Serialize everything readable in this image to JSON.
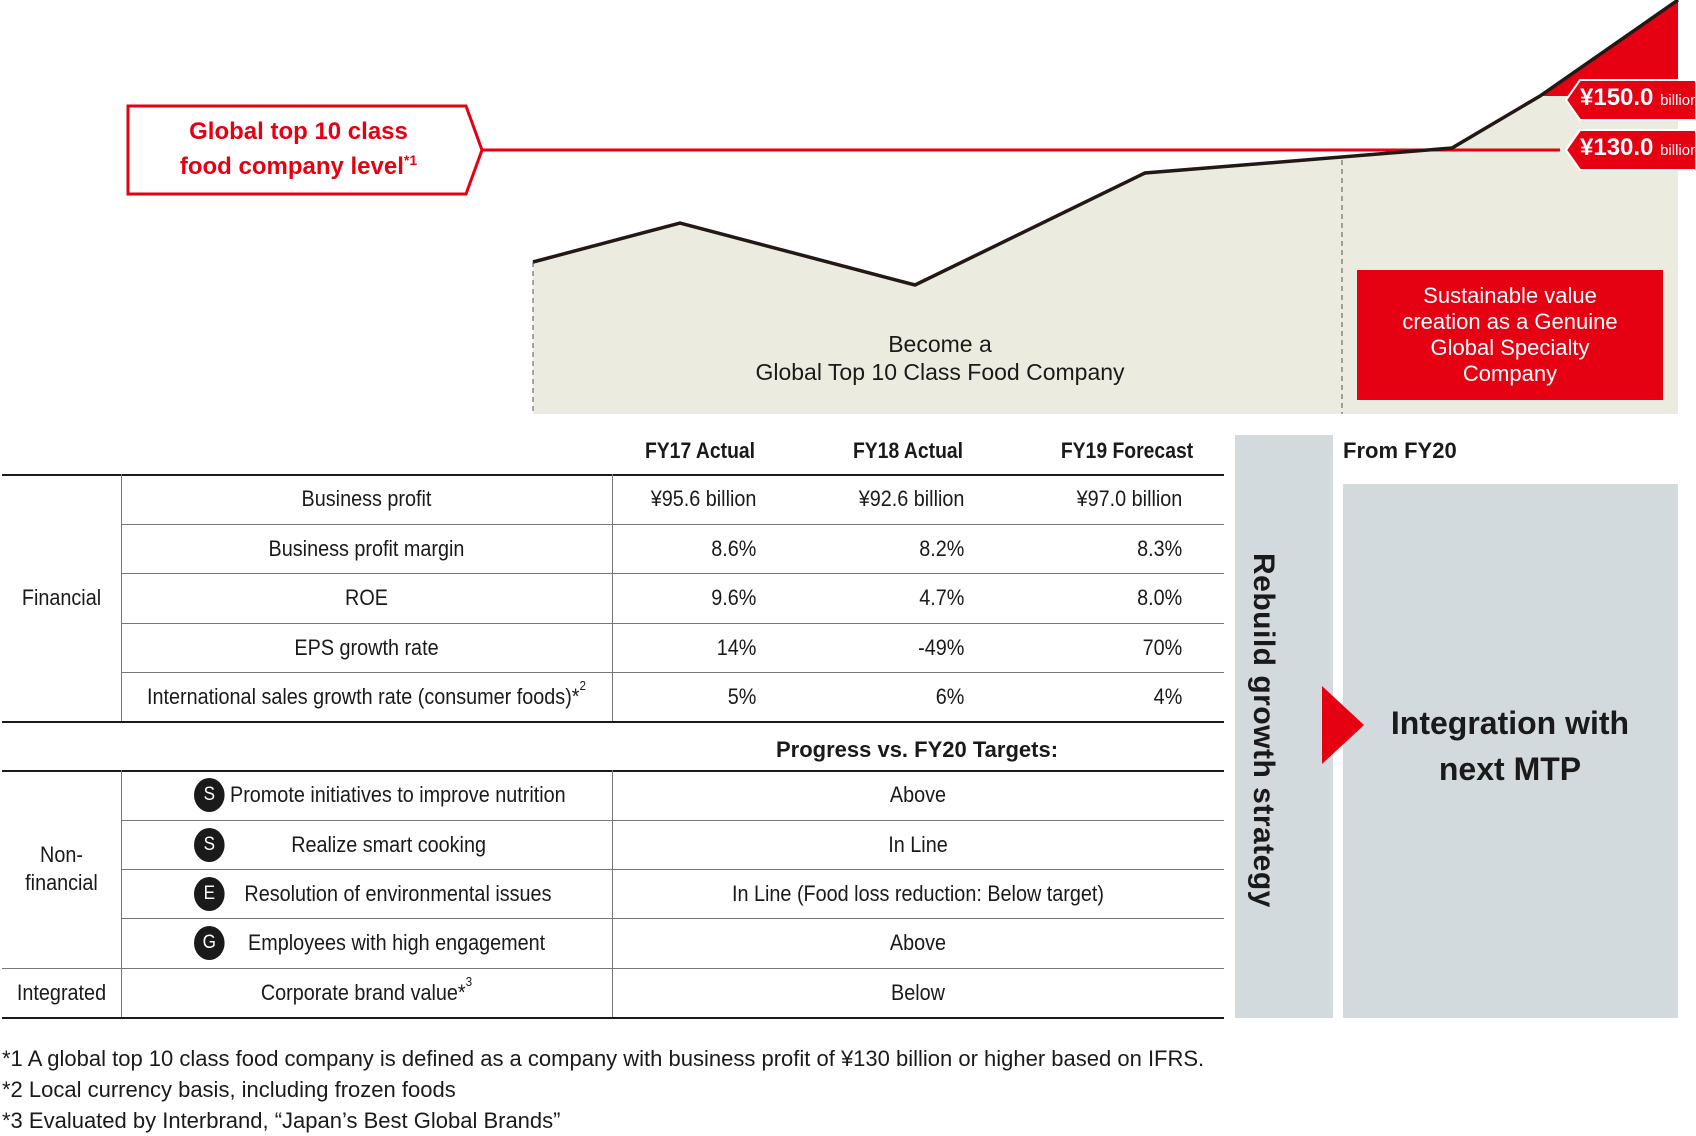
{
  "colors": {
    "accent_red": "#e50012",
    "beige_fill": "#ecebe0",
    "grey_panel": "#d3dadd",
    "line": "#231815"
  },
  "chart": {
    "callout_line1": "Global top 10 class",
    "callout_line2": "food company level",
    "callout_note": "*1",
    "tag_high_value": "¥150.0",
    "tag_high_unit": "billion",
    "tag_low_value": "¥130.0",
    "tag_low_unit": "billion",
    "become_line1": "Become a",
    "become_line2": "Global Top 10 Class Food Company",
    "sustainable_label": "Sustainable value creation as a Genuine Global Specialty Company"
  },
  "table": {
    "columns": [
      "FY17 Actual",
      "FY18 Actual",
      "FY19 Forecast"
    ],
    "from_label": "From FY20",
    "financial_group": "Financial",
    "financial_rows": [
      {
        "label": "Business profit",
        "note": "",
        "values": [
          "¥95.6 billion",
          "¥92.6 billion",
          "¥97.0 billion"
        ]
      },
      {
        "label": "Business profit margin",
        "note": "",
        "values": [
          "8.6%",
          "8.2%",
          "8.3%"
        ]
      },
      {
        "label": "ROE",
        "note": "",
        "values": [
          "9.6%",
          "4.7%",
          "8.0%"
        ]
      },
      {
        "label": "EPS growth rate",
        "note": "",
        "values": [
          "14%",
          "-49%",
          "70%"
        ]
      },
      {
        "label": "International sales growth rate (consumer foods)*",
        "note": "2",
        "values": [
          "5%",
          "6%",
          "4%"
        ]
      }
    ],
    "progress_label": "Progress vs. FY20 Targets:",
    "nonfinancial_group_line1": "Non-",
    "nonfinancial_group_line2": "financial",
    "nonfinancial_rows": [
      {
        "badge": "S",
        "label": "Promote initiatives to improve nutrition",
        "status": "Above"
      },
      {
        "badge": "S",
        "label": "Realize smart cooking",
        "status": "In Line"
      },
      {
        "badge": "E",
        "label": "Resolution of environmental issues",
        "status": "In Line (Food loss reduction: Below target)"
      },
      {
        "badge": "G",
        "label": "Employees with high engagement",
        "status": "Above"
      }
    ],
    "integrated_group": "Integrated",
    "integrated_row": {
      "label": "Corporate brand value*",
      "note": "3",
      "status": "Below"
    }
  },
  "side": {
    "rebuild_label": "Rebuild growth strategy",
    "integration_line1": "Integration with",
    "integration_line2": "next MTP"
  },
  "footnotes": [
    "*1 A global top 10 class food company is defined as a company with business profit of ¥130 billion or higher based on IFRS.",
    "*2 Local currency basis, including frozen foods",
    "*3 Evaluated by Interbrand, “Japan’s Best Global Brands”"
  ]
}
